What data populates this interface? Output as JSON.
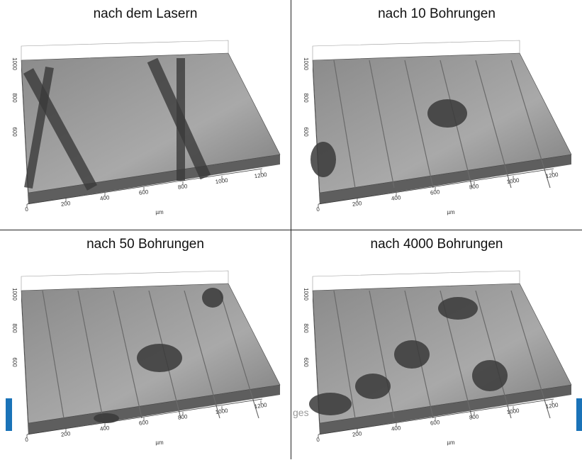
{
  "panels": [
    {
      "title": "nach dem Lasern",
      "x_ticks": [
        "0",
        "200",
        "400",
        "600",
        "800",
        "1000",
        "1200"
      ],
      "x_unit": "µm",
      "y_ticks": [
        "1000",
        "800",
        "600"
      ]
    },
    {
      "title": "nach 10 Bohrungen",
      "x_ticks": [
        "0",
        "200",
        "400",
        "600",
        "800",
        "1000",
        "1200"
      ],
      "x_unit": "µm",
      "y_ticks": [
        "1000",
        "800",
        "600"
      ]
    },
    {
      "title": "nach 50 Bohrungen",
      "x_ticks": [
        "0",
        "200",
        "400",
        "600",
        "800",
        "1000",
        "1200"
      ],
      "x_unit": "µm",
      "y_ticks": [
        "1000",
        "800",
        "600"
      ]
    },
    {
      "title": "nach 4000 Bohrungen",
      "x_ticks": [
        "0",
        "200",
        "400",
        "600",
        "800",
        "1000",
        "1200"
      ],
      "x_unit": "µm",
      "y_ticks": [
        "1000",
        "800",
        "600"
      ]
    }
  ],
  "overlay_text": "ges"
}
